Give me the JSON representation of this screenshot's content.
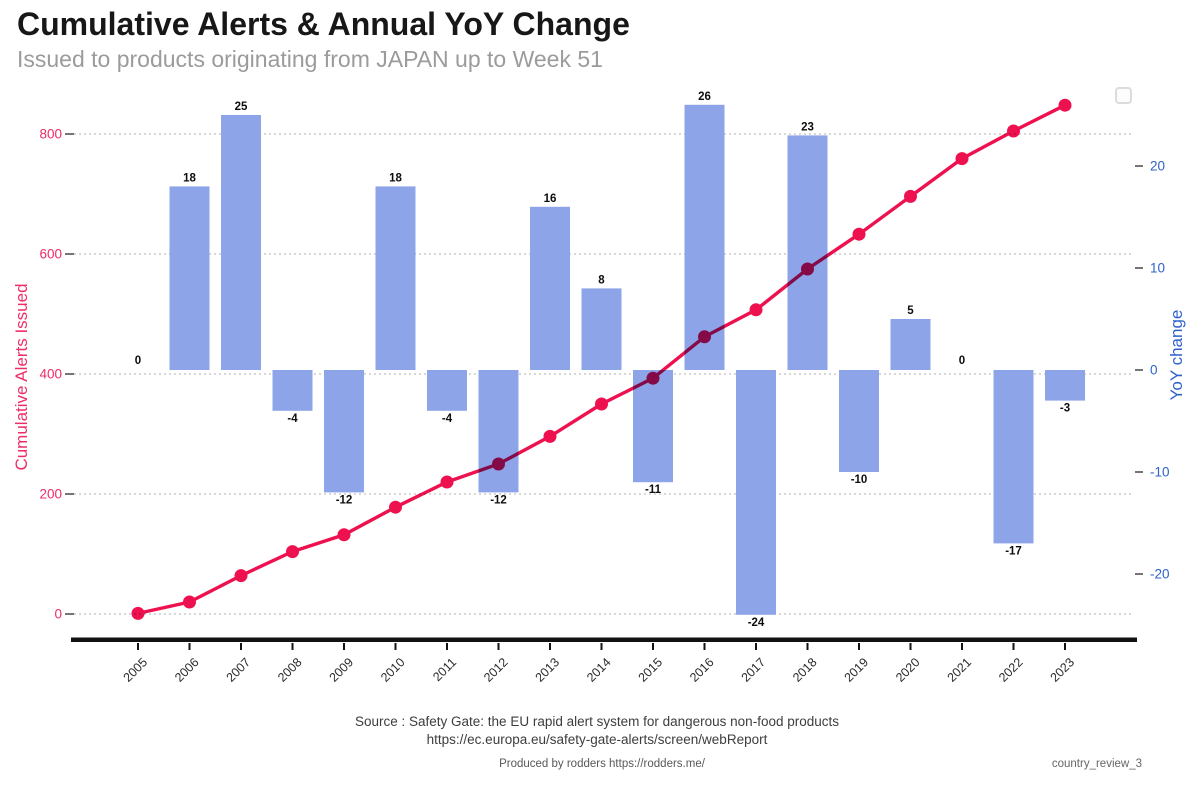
{
  "header": {
    "title": "Cumulative Alerts & Annual YoY Change",
    "subtitle": "Issued to products originating from JAPAN up to Week 51"
  },
  "footer": {
    "source_line1": "Source : Safety Gate: the EU rapid alert system for dangerous non-food products",
    "source_line2": "https://ec.europa.eu/safety-gate-alerts/screen/webReport",
    "produced_by": "Produced by rodders https://rodders.me/",
    "doc_tag": "country_review_3"
  },
  "colors": {
    "bar": "#8da4e8",
    "line": "#ee114f",
    "left_axis_text": "#ee2d67",
    "right_axis_text": "#2f62c9",
    "grid": "#b0b0b0",
    "axis_line": "#121212",
    "tick_mark": "#3a3a3a",
    "bar_label": "#0d0d0d",
    "year_label": "#2b2b2b"
  },
  "chart_data": {
    "type": "combo_bar_line_dual_axis",
    "title": "Cumulative Alerts & Annual YoY Change",
    "subtitle": "Issued to products originating from JAPAN up to Week 51",
    "categories": [
      "2005",
      "2006",
      "2007",
      "2008",
      "2009",
      "2010",
      "2011",
      "2012",
      "2013",
      "2014",
      "2015",
      "2016",
      "2017",
      "2018",
      "2019",
      "2020",
      "2021",
      "2022",
      "2023"
    ],
    "series": [
      {
        "name": "YoY change",
        "chart": "bar",
        "axis": "right",
        "color": "#8da4e8",
        "values": [
          0,
          18,
          25,
          -4,
          -12,
          18,
          -4,
          -12,
          16,
          8,
          -11,
          26,
          -24,
          23,
          -10,
          5,
          0,
          -17,
          -3
        ],
        "data_labels_shown": true
      },
      {
        "name": "Cumulative Alerts Issued",
        "chart": "line",
        "axis": "left",
        "color": "#ee114f",
        "marker": "circle",
        "values_estimated": true,
        "values": [
          1,
          20,
          64,
          104,
          132,
          178,
          220,
          250,
          296,
          350,
          393,
          462,
          507,
          575,
          633,
          696,
          759,
          805,
          848
        ]
      }
    ],
    "left_axis": {
      "label": "Cumulative Alerts Issued",
      "color": "#ee2d67",
      "ticks": [
        0,
        200,
        400,
        600,
        800
      ],
      "range": [
        0,
        870
      ]
    },
    "right_axis": {
      "label": "YoY change",
      "color": "#2f62c9",
      "ticks": [
        20,
        10,
        0,
        -10,
        -20
      ],
      "range": [
        -26.5,
        26.5
      ]
    },
    "x_axis": {
      "tick_labels_rotation_deg": -45
    },
    "grid": {
      "horizontal_dotted_at_left_ticks": true
    },
    "legend": {
      "present": true,
      "empty_box": true,
      "items": []
    }
  }
}
